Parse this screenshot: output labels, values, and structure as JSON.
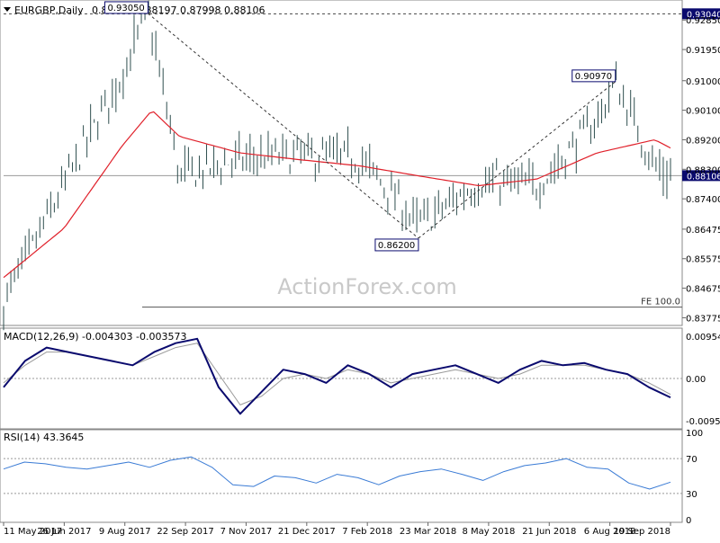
{
  "header": {
    "symbol": "EURGBP,Daily",
    "ohlc": "0.88133 0.88197 0.87998 0.88106"
  },
  "watermark": "ActionForex.com",
  "colors": {
    "candle": "#2f4f4f",
    "ma": "#e0202a",
    "macd": "#0a0a6e",
    "signal": "#9a9a9a",
    "rsi": "#3a7bd5",
    "level": "#555555",
    "badge_bg": "#0a0a6e",
    "badge_fg": "#ffffff",
    "annot_border": "#0a0a6e"
  },
  "chart_data": [
    {
      "type": "candlestick",
      "panel": "price",
      "ylim": [
        0.8365,
        0.9335
      ],
      "price_ticks": [
        "0.93040",
        "0.92850",
        "0.91950",
        "0.91000",
        "0.90100",
        "0.89200",
        "0.88300",
        "0.87400",
        "0.86475",
        "0.85575",
        "0.84675",
        "0.83775"
      ],
      "x_tick_labels": [
        "11 May 2017",
        "26 Jun 2017",
        "9 Aug 2017",
        "22 Sep 2017",
        "7 Nov 2017",
        "21 Dec 2017",
        "7 Feb 2018",
        "23 Mar 2018",
        "8 May 2018",
        "21 Jun 2018",
        "6 Aug 2018",
        "19 Sep 2018"
      ],
      "series": [
        {
          "name": "close",
          "x": [
            "2017-05-11",
            "2017-06-26",
            "2017-08-09",
            "2017-08-29",
            "2017-09-22",
            "2017-11-07",
            "2017-12-21",
            "2018-02-07",
            "2018-03-23",
            "2018-05-08",
            "2018-06-21",
            "2018-08-06",
            "2018-08-20",
            "2018-09-19",
            "2018-10-01"
          ],
          "values": [
            0.842,
            0.878,
            0.912,
            0.9305,
            0.881,
            0.886,
            0.887,
            0.886,
            0.866,
            0.879,
            0.878,
            0.898,
            0.9097,
            0.884,
            0.8811
          ]
        },
        {
          "name": "MA",
          "x": [
            "2017-05-11",
            "2017-06-26",
            "2017-08-09",
            "2017-09-01",
            "2017-09-22",
            "2017-11-07",
            "2017-12-21",
            "2018-02-07",
            "2018-03-23",
            "2018-05-08",
            "2018-06-21",
            "2018-08-06",
            "2018-09-19",
            "2018-10-01"
          ],
          "values": [
            0.85,
            0.865,
            0.89,
            0.901,
            0.893,
            0.888,
            0.886,
            0.884,
            0.881,
            0.878,
            0.88,
            0.888,
            0.892,
            0.8895
          ]
        }
      ],
      "annotations": [
        {
          "label": "0.93050",
          "x": "2017-08-29",
          "y": 0.9305
        },
        {
          "label": "0.86200",
          "x": "2018-03-23",
          "y": 0.862
        },
        {
          "label": "0.90970",
          "x": "2018-08-20",
          "y": 0.9097
        }
      ],
      "levels": [
        {
          "value": 0.9304,
          "badge": "0.93040",
          "style": "dashed"
        },
        {
          "value": 0.88106,
          "badge": "0.88106",
          "style": "solid"
        },
        {
          "value": 0.841,
          "label": "FE 100.0",
          "style": "solid"
        }
      ]
    },
    {
      "type": "line",
      "panel": "macd",
      "title": "MACD(12,26,9) -0.004303 -0.003573",
      "ylim": [
        -0.0108,
        0.0108
      ],
      "yticks": [
        "0.00954",
        "0.00",
        "-0.009538"
      ],
      "series": [
        {
          "name": "MACD",
          "values": [
            -0.002,
            0.004,
            0.007,
            0.006,
            0.005,
            0.004,
            0.003,
            0.006,
            0.008,
            0.009,
            -0.002,
            -0.008,
            -0.003,
            0.002,
            0.001,
            -0.001,
            0.003,
            0.001,
            -0.002,
            0.001,
            0.002,
            0.003,
            0.001,
            -0.001,
            0.002,
            0.004,
            0.003,
            0.0035,
            0.002,
            0.001,
            -0.002,
            -0.0043
          ]
        },
        {
          "name": "Signal",
          "values": [
            -0.001,
            0.003,
            0.006,
            0.006,
            0.005,
            0.004,
            0.003,
            0.005,
            0.007,
            0.008,
            0.001,
            -0.006,
            -0.004,
            0.0,
            0.001,
            0.0,
            0.002,
            0.001,
            -0.001,
            0.0,
            0.001,
            0.002,
            0.001,
            0.0,
            0.001,
            0.003,
            0.003,
            0.003,
            0.002,
            0.001,
            -0.001,
            -0.0036
          ]
        }
      ]
    },
    {
      "type": "line",
      "panel": "rsi",
      "title": "RSI(14) 43.3645",
      "ylim": [
        0,
        100
      ],
      "yticks": [
        "100",
        "70",
        "30",
        "0"
      ],
      "levels": [
        70,
        30
      ],
      "series": [
        {
          "name": "RSI",
          "values": [
            58,
            66,
            64,
            60,
            58,
            62,
            66,
            60,
            68,
            72,
            60,
            40,
            38,
            50,
            48,
            42,
            52,
            48,
            40,
            50,
            55,
            58,
            52,
            45,
            55,
            62,
            65,
            70,
            60,
            58,
            42,
            35,
            43
          ]
        }
      ]
    }
  ]
}
